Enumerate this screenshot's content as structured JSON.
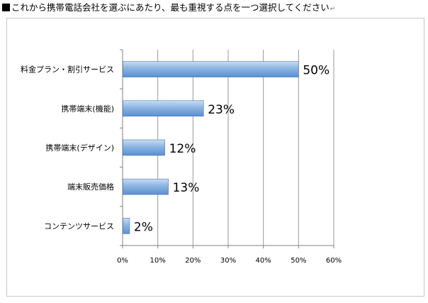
{
  "page": {
    "title": "これから携帯電話会社を選ぶにあたり、最も重視する点を一つ選択してください",
    "return_mark": "↵"
  },
  "chart_data": {
    "type": "bar",
    "orientation": "horizontal",
    "title": "",
    "xlabel": "",
    "ylabel": "",
    "categories": [
      "料金プラン・割引サービス",
      "携帯端末(機能)",
      "携帯端末(デザイン)",
      "端末販売価格",
      "コンテンツサービス"
    ],
    "values": [
      50,
      23,
      12,
      13,
      2
    ],
    "value_labels": [
      "50%",
      "23%",
      "12%",
      "13%",
      "2%"
    ],
    "xlim": [
      0,
      60
    ],
    "x_ticks": [
      "0%",
      "10%",
      "20%",
      "30%",
      "40%",
      "50%",
      "60%"
    ],
    "grid": true,
    "legend": "none",
    "colors": {
      "bar_light": "#c9ddf3",
      "bar_mid": "#8cb4e2",
      "bar_dark": "#5a8fd0",
      "bar_edge": "#4a79b5",
      "grid": "#9a9a9a",
      "axis": "#808080"
    }
  }
}
